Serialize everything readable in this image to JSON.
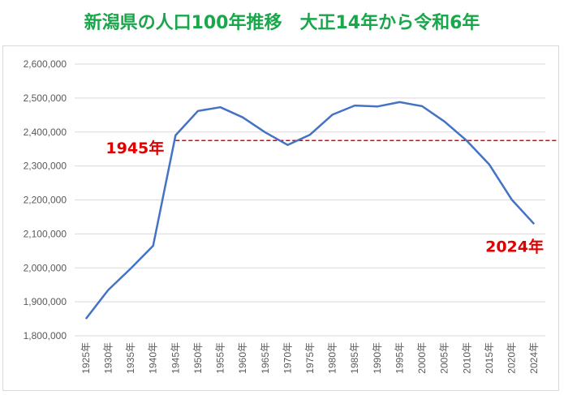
{
  "title": "新潟県の人口100年推移　大正14年から令和6年",
  "colors": {
    "title": "#1aa64b",
    "line": "#4472c4",
    "reference_line": "#e00000",
    "annotation": "#e00000",
    "grid": "#d9d9d9",
    "tick_text": "#595959"
  },
  "chart_data": {
    "type": "line",
    "title": "新潟県の人口100年推移　大正14年から令和6年",
    "xlabel": "",
    "ylabel": "",
    "categories": [
      "1925年",
      "1930年",
      "1935年",
      "1940年",
      "1945年",
      "1950年",
      "1955年",
      "1960年",
      "1965年",
      "1970年",
      "1975年",
      "1980年",
      "1985年",
      "1990年",
      "1995年",
      "2000年",
      "2005年",
      "2010年",
      "2015年",
      "2020年",
      "2024年"
    ],
    "series": [
      {
        "values": [
          1850000,
          1935000,
          1998000,
          2065000,
          2390000,
          2462000,
          2473000,
          2443000,
          2399000,
          2362000,
          2392000,
          2451000,
          2478000,
          2475000,
          2488000,
          2476000,
          2431000,
          2374000,
          2304000,
          2201000,
          2129000
        ]
      }
    ],
    "ylim": [
      1800000,
      2600000
    ],
    "yticks": [
      1800000,
      1900000,
      2000000,
      2100000,
      2200000,
      2300000,
      2400000,
      2500000,
      2600000
    ],
    "ytick_labels": [
      "1,800,000",
      "1,900,000",
      "2,000,000",
      "2,100,000",
      "2,200,000",
      "2,300,000",
      "2,400,000",
      "2,500,000",
      "2,600,000"
    ],
    "grid": true,
    "legend": "none",
    "reference_line": {
      "value": 2375000,
      "style": "dashed"
    },
    "annotations": [
      "1945年",
      "2024年"
    ]
  }
}
